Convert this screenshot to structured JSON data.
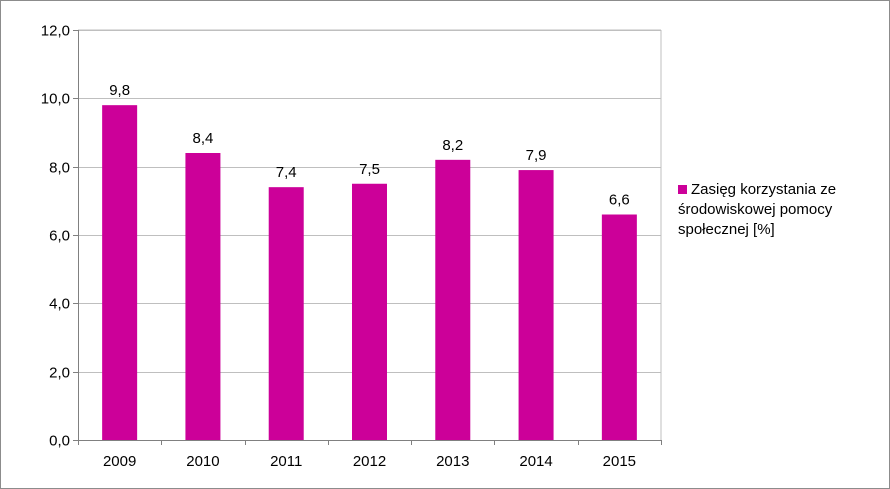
{
  "chart_data": {
    "type": "bar",
    "title": "",
    "xlabel": "",
    "ylabel": "",
    "categories": [
      "2009",
      "2010",
      "2011",
      "2012",
      "2013",
      "2014",
      "2015"
    ],
    "series": [
      {
        "name": "Zasięg korzystania ze środowiskowej pomocy społecznej [%]",
        "values": [
          9.8,
          8.4,
          7.4,
          7.5,
          8.2,
          7.9,
          6.6
        ],
        "value_labels": [
          "9,8",
          "8,4",
          "7,4",
          "7,5",
          "8,2",
          "7,9",
          "6,6"
        ],
        "color": "#CC0099"
      }
    ],
    "ylim": [
      0,
      12
    ],
    "y_ticks": [
      0,
      2,
      4,
      6,
      8,
      10,
      12
    ],
    "y_tick_labels": [
      "0,0",
      "2,0",
      "4,0",
      "6,0",
      "8,0",
      "10,0",
      "12,0"
    ],
    "grid": true,
    "legend_position": "right"
  }
}
